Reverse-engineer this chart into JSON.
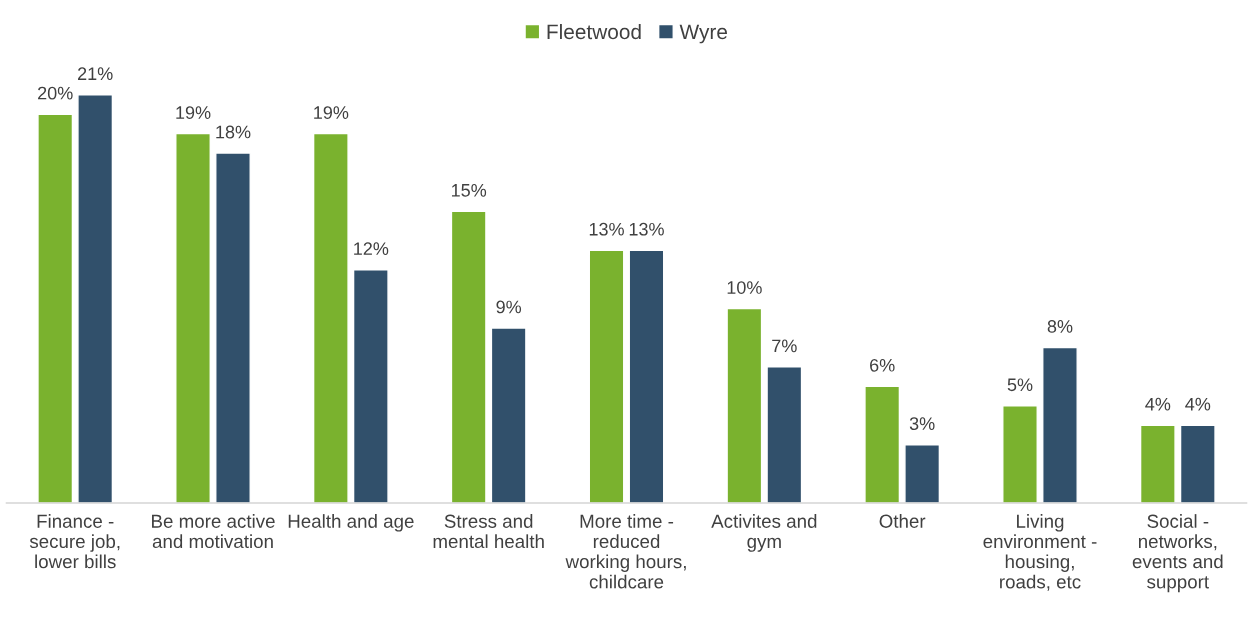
{
  "chart_data": {
    "type": "bar",
    "categories": [
      "Finance - secure job, lower bills",
      "Be more active and motivation",
      "Health and age",
      "Stress and mental health",
      "More time - reduced working hours, childcare",
      "Activites and gym",
      "Other",
      "Living environment - housing, roads, etc",
      "Social - networks, events and support"
    ],
    "series": [
      {
        "name": "Fleetwood",
        "color": "#7ab22e",
        "values": [
          20,
          19,
          19,
          15,
          13,
          10,
          6,
          5,
          4
        ],
        "value_labels": [
          "20%",
          "19%",
          "19%",
          "15%",
          "13%",
          "10%",
          "6%",
          "5%",
          "4%"
        ]
      },
      {
        "name": "Wyre",
        "color": "#31506b",
        "values": [
          21,
          18,
          12,
          9,
          13,
          7,
          3,
          8,
          4
        ],
        "value_labels": [
          "21%",
          "18%",
          "12%",
          "9%",
          "13%",
          "7%",
          "3%",
          "8%",
          "4%"
        ]
      }
    ],
    "legend": "top",
    "grid": false
  }
}
